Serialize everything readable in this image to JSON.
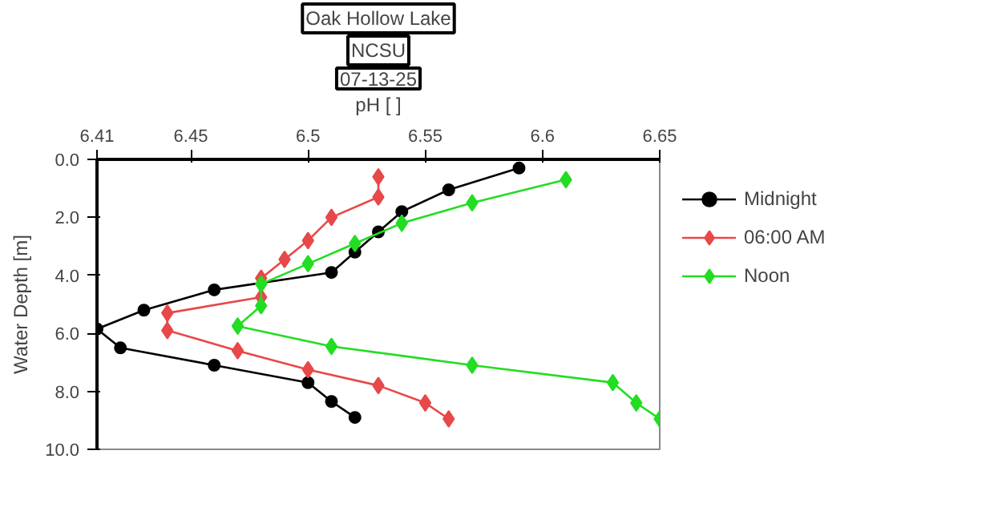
{
  "chart_data": {
    "type": "line",
    "title": "Oak Hollow Lake",
    "subtitle": "NCSU",
    "annotations": [
      "07-13-25"
    ],
    "xlabel": "pH [ ]",
    "ylabel": "Water Depth [m]",
    "xlim": [
      6.41,
      6.65
    ],
    "xticks": [
      6.41,
      6.45,
      6.5,
      6.55,
      6.6,
      6.65
    ],
    "ylim": [
      10,
      0
    ],
    "yticks": [
      {
        "value": 0,
        "label": "0.0"
      },
      {
        "value": 2,
        "label": "2.0"
      },
      {
        "value": 4,
        "label": "4.0"
      },
      {
        "value": 6,
        "label": "6.0"
      },
      {
        "value": 8,
        "label": "8.0"
      },
      {
        "value": 10,
        "label": "10.0"
      }
    ],
    "grid": false,
    "legend": "top right",
    "marker": "circle",
    "line_style": "solid",
    "series": [
      {
        "name": "Midnight",
        "color": "#000000",
        "x": [
          6.59,
          6.56,
          6.54,
          6.53,
          6.52,
          6.51,
          6.46,
          6.43,
          6.41,
          6.42,
          6.46,
          6.5,
          6.51,
          6.52
        ],
        "values": [
          0.3,
          1.05,
          1.8,
          2.5,
          3.2,
          3.9,
          4.5,
          5.2,
          5.85,
          6.5,
          7.1,
          7.7,
          8.35,
          8.9
        ]
      },
      {
        "name": "06:00 AM",
        "color": "#e84848",
        "marker": "diamond",
        "x": [
          6.53,
          6.53,
          6.51,
          6.5,
          6.49,
          6.48,
          6.48,
          6.44,
          6.44,
          6.47,
          6.5,
          6.53,
          6.55,
          6.56
        ],
        "values": [
          0.6,
          1.3,
          2.0,
          2.8,
          3.45,
          4.1,
          4.75,
          5.3,
          5.9,
          6.6,
          7.25,
          7.8,
          8.4,
          8.95
        ]
      },
      {
        "name": "Noon",
        "color": "#22dd22",
        "marker": "diamond",
        "x": [
          6.61,
          6.57,
          6.54,
          6.52,
          6.5,
          6.48,
          6.48,
          6.47,
          6.51,
          6.57,
          6.63,
          6.64,
          6.65
        ],
        "values": [
          0.7,
          1.5,
          2.2,
          2.9,
          3.6,
          4.3,
          5.05,
          5.75,
          6.45,
          7.1,
          7.7,
          8.4,
          8.95
        ]
      }
    ]
  }
}
